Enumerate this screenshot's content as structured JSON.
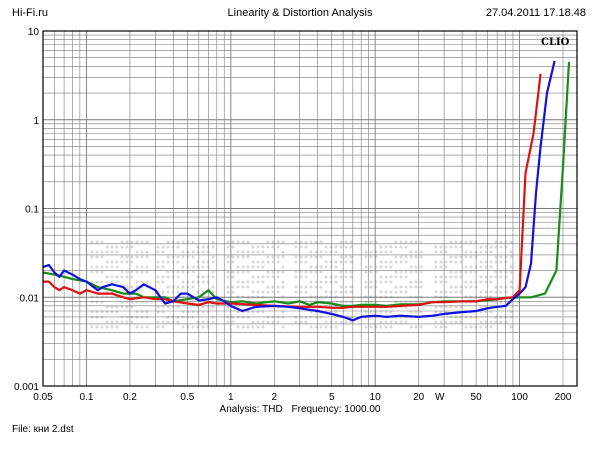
{
  "header": {
    "left": "Hi-Fi.ru",
    "center": "Linearity & Distortion Analysis",
    "right": "27.04.2011 17.18.48"
  },
  "footer": {
    "analysis_label": "Analysis: THD",
    "frequency_label": "Frequency: 1000.00",
    "file_label": "File: кни 2.dst"
  },
  "brand": "CLIO",
  "chart_data": {
    "type": "line",
    "x_scale": "log",
    "y_scale": "log",
    "xlim": [
      0.05,
      250
    ],
    "ylim": [
      0.001,
      10
    ],
    "x_ticks": [
      {
        "v": 0.05,
        "label": "0.05"
      },
      {
        "v": 0.1,
        "label": "0.1"
      },
      {
        "v": 0.2,
        "label": "0.2"
      },
      {
        "v": 0.5,
        "label": "0.5"
      },
      {
        "v": 1,
        "label": "1"
      },
      {
        "v": 2,
        "label": "2"
      },
      {
        "v": 5,
        "label": "5"
      },
      {
        "v": 10,
        "label": "10"
      },
      {
        "v": 20,
        "label": "20"
      },
      {
        "v": 50,
        "label": "50"
      },
      {
        "v": 100,
        "label": "100"
      },
      {
        "v": 200,
        "label": "200"
      }
    ],
    "x_unit_label": "W",
    "y_ticks": [
      {
        "v": 10,
        "label": "10"
      },
      {
        "v": 1,
        "label": "1"
      },
      {
        "v": 0.1,
        "label": "0.1"
      },
      {
        "v": 0.01,
        "label": "0.01"
      },
      {
        "v": 0.001,
        "label": "0.001"
      }
    ],
    "grid": true,
    "series": [
      {
        "color": "#1a8a1a",
        "points": [
          [
            0.05,
            0.019
          ],
          [
            0.06,
            0.018
          ],
          [
            0.07,
            0.017
          ],
          [
            0.08,
            0.016
          ],
          [
            0.1,
            0.015
          ],
          [
            0.12,
            0.013
          ],
          [
            0.15,
            0.012
          ],
          [
            0.18,
            0.011
          ],
          [
            0.22,
            0.011
          ],
          [
            0.25,
            0.01
          ],
          [
            0.3,
            0.01
          ],
          [
            0.35,
            0.01
          ],
          [
            0.4,
            0.009
          ],
          [
            0.5,
            0.0095
          ],
          [
            0.6,
            0.01
          ],
          [
            0.7,
            0.012
          ],
          [
            0.8,
            0.0095
          ],
          [
            1,
            0.0088
          ],
          [
            1.2,
            0.009
          ],
          [
            1.5,
            0.0085
          ],
          [
            2,
            0.009
          ],
          [
            2.5,
            0.0085
          ],
          [
            3,
            0.009
          ],
          [
            3.5,
            0.0082
          ],
          [
            4,
            0.0088
          ],
          [
            5,
            0.0085
          ],
          [
            6,
            0.008
          ],
          [
            7,
            0.008
          ],
          [
            8,
            0.0082
          ],
          [
            10,
            0.0082
          ],
          [
            12,
            0.008
          ],
          [
            15,
            0.0083
          ],
          [
            20,
            0.0083
          ],
          [
            25,
            0.0088
          ],
          [
            30,
            0.009
          ],
          [
            40,
            0.009
          ],
          [
            50,
            0.009
          ],
          [
            60,
            0.0092
          ],
          [
            70,
            0.0095
          ],
          [
            80,
            0.0098
          ],
          [
            100,
            0.01
          ],
          [
            120,
            0.01
          ],
          [
            150,
            0.011
          ],
          [
            180,
            0.02
          ],
          [
            200,
            0.3
          ],
          [
            220,
            4.5
          ]
        ]
      },
      {
        "color": "#e01010",
        "points": [
          [
            0.05,
            0.015
          ],
          [
            0.055,
            0.015
          ],
          [
            0.06,
            0.013
          ],
          [
            0.065,
            0.012
          ],
          [
            0.07,
            0.013
          ],
          [
            0.08,
            0.012
          ],
          [
            0.09,
            0.011
          ],
          [
            0.1,
            0.012
          ],
          [
            0.12,
            0.011
          ],
          [
            0.15,
            0.011
          ],
          [
            0.18,
            0.01
          ],
          [
            0.2,
            0.0095
          ],
          [
            0.25,
            0.01
          ],
          [
            0.3,
            0.0095
          ],
          [
            0.35,
            0.0095
          ],
          [
            0.4,
            0.009
          ],
          [
            0.5,
            0.0085
          ],
          [
            0.6,
            0.0082
          ],
          [
            0.7,
            0.0088
          ],
          [
            0.8,
            0.0085
          ],
          [
            1,
            0.0085
          ],
          [
            1.5,
            0.0082
          ],
          [
            2,
            0.008
          ],
          [
            3,
            0.0078
          ],
          [
            4,
            0.0078
          ],
          [
            5,
            0.0076
          ],
          [
            6,
            0.0076
          ],
          [
            7,
            0.0078
          ],
          [
            8,
            0.0078
          ],
          [
            10,
            0.0078
          ],
          [
            12,
            0.0078
          ],
          [
            15,
            0.008
          ],
          [
            20,
            0.0082
          ],
          [
            25,
            0.0088
          ],
          [
            30,
            0.0088
          ],
          [
            40,
            0.009
          ],
          [
            50,
            0.009
          ],
          [
            60,
            0.0095
          ],
          [
            70,
            0.0095
          ],
          [
            80,
            0.0098
          ],
          [
            90,
            0.01
          ],
          [
            100,
            0.012
          ],
          [
            110,
            0.25
          ],
          [
            125,
            0.7
          ],
          [
            140,
            3.3
          ]
        ]
      },
      {
        "color": "#1010e0",
        "points": [
          [
            0.05,
            0.022
          ],
          [
            0.055,
            0.023
          ],
          [
            0.06,
            0.019
          ],
          [
            0.065,
            0.017
          ],
          [
            0.07,
            0.02
          ],
          [
            0.08,
            0.018
          ],
          [
            0.09,
            0.016
          ],
          [
            0.1,
            0.015
          ],
          [
            0.12,
            0.012
          ],
          [
            0.13,
            0.013
          ],
          [
            0.15,
            0.014
          ],
          [
            0.18,
            0.013
          ],
          [
            0.2,
            0.011
          ],
          [
            0.22,
            0.012
          ],
          [
            0.25,
            0.014
          ],
          [
            0.3,
            0.012
          ],
          [
            0.35,
            0.0085
          ],
          [
            0.4,
            0.009
          ],
          [
            0.45,
            0.011
          ],
          [
            0.5,
            0.011
          ],
          [
            0.6,
            0.0092
          ],
          [
            0.7,
            0.0095
          ],
          [
            0.8,
            0.01
          ],
          [
            0.9,
            0.009
          ],
          [
            1,
            0.008
          ],
          [
            1.2,
            0.007
          ],
          [
            1.5,
            0.0078
          ],
          [
            2,
            0.008
          ],
          [
            2.5,
            0.0078
          ],
          [
            3,
            0.0075
          ],
          [
            4,
            0.007
          ],
          [
            5,
            0.0065
          ],
          [
            6,
            0.006
          ],
          [
            7,
            0.0055
          ],
          [
            8,
            0.006
          ],
          [
            10,
            0.0062
          ],
          [
            12,
            0.006
          ],
          [
            15,
            0.0062
          ],
          [
            20,
            0.006
          ],
          [
            25,
            0.0062
          ],
          [
            30,
            0.0065
          ],
          [
            40,
            0.0068
          ],
          [
            50,
            0.007
          ],
          [
            60,
            0.0075
          ],
          [
            70,
            0.0078
          ],
          [
            80,
            0.008
          ],
          [
            90,
            0.0095
          ],
          [
            100,
            0.011
          ],
          [
            110,
            0.013
          ],
          [
            120,
            0.024
          ],
          [
            130,
            0.15
          ],
          [
            140,
            0.5
          ],
          [
            155,
            2
          ],
          [
            175,
            4.6
          ]
        ]
      }
    ]
  }
}
